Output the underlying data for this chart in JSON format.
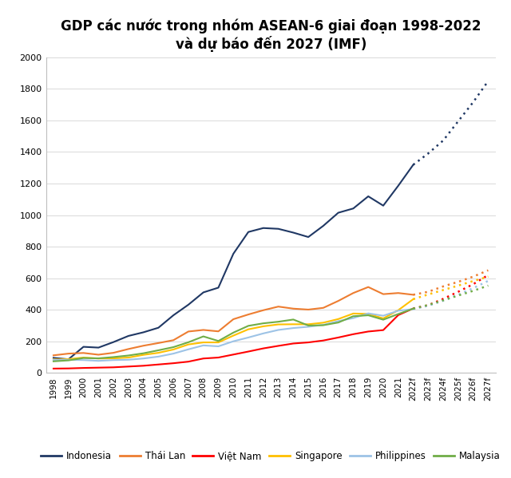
{
  "title": "GDP các nước trong nhóm ASEAN-6 giai đoạn 1998-2022\nvà dự báo đến 2027 (IMF)",
  "years_actual": [
    1998,
    1999,
    2000,
    2001,
    2002,
    2003,
    2004,
    2005,
    2006,
    2007,
    2008,
    2009,
    2010,
    2011,
    2012,
    2013,
    2014,
    2015,
    2016,
    2017,
    2018,
    2019,
    2020,
    2021,
    2022
  ],
  "years_forecast": [
    2022,
    2023,
    2024,
    2025,
    2026,
    2027
  ],
  "forecast_labels": [
    "2022f",
    "2023f",
    "2024f",
    "2025f",
    "2026f",
    "2027f"
  ],
  "Indonesia": {
    "actual": [
      95,
      86,
      165,
      160,
      195,
      234,
      257,
      286,
      365,
      432,
      510,
      540,
      755,
      893,
      918,
      913,
      889,
      861,
      932,
      1015,
      1042,
      1119,
      1060,
      1186,
      1319
    ],
    "forecast": [
      1319,
      1391,
      1473,
      1595,
      1716,
      1850
    ],
    "color": "#203864",
    "label": "Indonesia"
  },
  "ThaiLan": {
    "actual": [
      111,
      122,
      126,
      115,
      127,
      151,
      172,
      189,
      207,
      262,
      272,
      263,
      340,
      370,
      397,
      420,
      407,
      401,
      412,
      456,
      506,
      544,
      499,
      506,
      495
    ],
    "forecast": [
      495,
      514,
      548,
      577,
      610,
      650
    ],
    "color": "#ed7d31",
    "label": "Thái Lan"
  },
  "VietNam": {
    "actual": [
      27,
      28,
      31,
      33,
      35,
      40,
      45,
      53,
      61,
      71,
      91,
      97,
      116,
      135,
      155,
      171,
      186,
      193,
      205,
      224,
      245,
      262,
      271,
      366,
      408
    ],
    "forecast": [
      408,
      429,
      469,
      514,
      562,
      620
    ],
    "color": "#ff0000",
    "label": "Việt Nam"
  },
  "Singapore": {
    "actual": [
      85,
      87,
      97,
      91,
      92,
      97,
      114,
      127,
      148,
      180,
      193,
      193,
      236,
      276,
      295,
      307,
      308,
      308,
      318,
      341,
      376,
      374,
      345,
      397,
      467
    ],
    "forecast": [
      467,
      497,
      525,
      553,
      582,
      610
    ],
    "color": "#ffc000",
    "label": "Singapore"
  },
  "Philippines": {
    "actual": [
      82,
      83,
      81,
      76,
      81,
      83,
      91,
      103,
      122,
      149,
      174,
      168,
      200,
      224,
      250,
      272,
      284,
      292,
      304,
      328,
      347,
      377,
      362,
      394,
      404
    ],
    "forecast": [
      404,
      425,
      457,
      495,
      537,
      583
    ],
    "color": "#9dc3e6",
    "label": "Philippines"
  },
  "Malaysia": {
    "actual": [
      73,
      79,
      94,
      92,
      100,
      110,
      124,
      143,
      163,
      194,
      231,
      202,
      255,
      298,
      314,
      324,
      338,
      300,
      302,
      319,
      359,
      365,
      337,
      373,
      407
    ],
    "forecast": [
      407,
      430,
      460,
      490,
      520,
      553
    ],
    "color": "#70ad47",
    "label": "Malaysia"
  },
  "ylim": [
    0,
    2000
  ],
  "yticks": [
    0,
    200,
    400,
    600,
    800,
    1000,
    1200,
    1400,
    1600,
    1800,
    2000
  ],
  "background_color": "#ffffff",
  "title_fontsize": 12,
  "tick_fontsize": 7.5,
  "legend_fontsize": 8.5
}
